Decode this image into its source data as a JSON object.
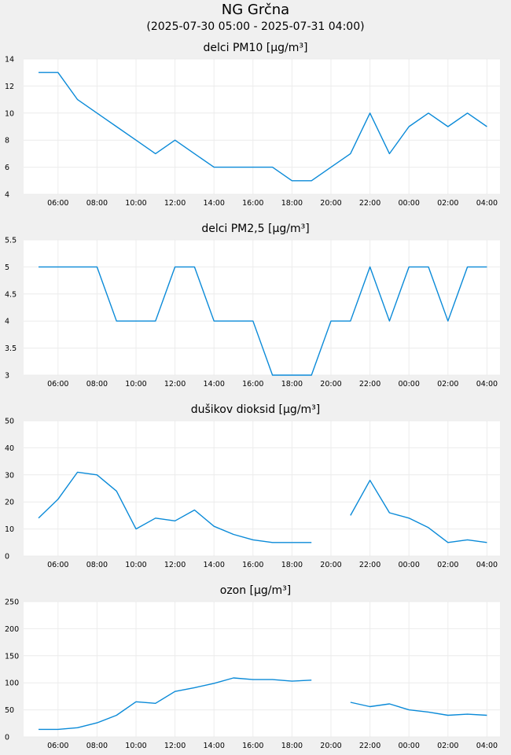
{
  "title": "NG Grčna",
  "subtitle": "(2025-07-30 05:00 - 2025-07-31 04:00)",
  "colors": {
    "line": "#0a8ad8",
    "plot_bg": "#ffffff",
    "grid": "#ececec",
    "page_bg": "#f0f0f0"
  },
  "chart_data": [
    {
      "type": "line",
      "title": "delci PM10 [µg/m³]",
      "x": [
        "05:00",
        "06:00",
        "07:00",
        "08:00",
        "09:00",
        "10:00",
        "11:00",
        "12:00",
        "13:00",
        "14:00",
        "15:00",
        "16:00",
        "17:00",
        "18:00",
        "19:00",
        "20:00",
        "21:00",
        "22:00",
        "23:00",
        "00:00",
        "01:00",
        "02:00",
        "03:00",
        "04:00"
      ],
      "values": [
        13,
        13,
        11,
        10,
        9,
        8,
        7,
        8,
        7,
        6,
        6,
        6,
        6,
        5,
        5,
        6,
        7,
        10,
        7,
        9,
        10,
        9,
        10,
        9
      ],
      "ylim": [
        4,
        14
      ],
      "yticks": [
        "4",
        "6",
        "8",
        "10",
        "12",
        "14"
      ],
      "xticks": [
        "06:00",
        "08:00",
        "10:00",
        "12:00",
        "14:00",
        "16:00",
        "18:00",
        "20:00",
        "22:00",
        "00:00",
        "02:00",
        "04:00"
      ]
    },
    {
      "type": "line",
      "title": "delci PM2,5 [µg/m³]",
      "x": [
        "05:00",
        "06:00",
        "07:00",
        "08:00",
        "09:00",
        "10:00",
        "11:00",
        "12:00",
        "13:00",
        "14:00",
        "15:00",
        "16:00",
        "17:00",
        "18:00",
        "19:00",
        "20:00",
        "21:00",
        "22:00",
        "23:00",
        "00:00",
        "01:00",
        "02:00",
        "03:00",
        "04:00"
      ],
      "values": [
        5,
        5,
        5,
        5,
        4,
        4,
        4,
        5,
        5,
        4,
        4,
        4,
        3,
        3,
        3,
        4,
        4,
        5,
        4,
        5,
        5,
        4,
        5,
        5
      ],
      "ylim": [
        3,
        5.5
      ],
      "yticks": [
        "3",
        "3.5",
        "4",
        "4.5",
        "5",
        "5.5"
      ],
      "xticks": [
        "06:00",
        "08:00",
        "10:00",
        "12:00",
        "14:00",
        "16:00",
        "18:00",
        "20:00",
        "22:00",
        "00:00",
        "02:00",
        "04:00"
      ]
    },
    {
      "type": "line",
      "title": "dušikov dioksid [µg/m³]",
      "x": [
        "05:00",
        "06:00",
        "07:00",
        "08:00",
        "09:00",
        "10:00",
        "11:00",
        "12:00",
        "13:00",
        "14:00",
        "15:00",
        "16:00",
        "17:00",
        "18:00",
        "19:00",
        "20:00",
        "21:00",
        "22:00",
        "23:00",
        "00:00",
        "01:00",
        "02:00",
        "03:00",
        "04:00"
      ],
      "values": [
        14,
        21,
        31,
        30,
        24,
        10,
        14,
        13,
        17,
        11,
        8,
        6,
        5,
        5,
        5,
        null,
        15,
        28,
        16,
        14,
        10.5,
        5,
        6,
        5
      ],
      "ylim": [
        0,
        50
      ],
      "yticks": [
        "0",
        "10",
        "20",
        "30",
        "40",
        "50"
      ],
      "xticks": [
        "06:00",
        "08:00",
        "10:00",
        "12:00",
        "14:00",
        "16:00",
        "18:00",
        "20:00",
        "22:00",
        "00:00",
        "02:00",
        "04:00"
      ]
    },
    {
      "type": "line",
      "title": "ozon [µg/m³]",
      "x": [
        "05:00",
        "06:00",
        "07:00",
        "08:00",
        "09:00",
        "10:00",
        "11:00",
        "12:00",
        "13:00",
        "14:00",
        "15:00",
        "16:00",
        "17:00",
        "18:00",
        "19:00",
        "20:00",
        "21:00",
        "22:00",
        "23:00",
        "00:00",
        "01:00",
        "02:00",
        "03:00",
        "04:00"
      ],
      "values": [
        14,
        14,
        17,
        26,
        40,
        65,
        62,
        84,
        91,
        99,
        109,
        106,
        106,
        103,
        105,
        null,
        64,
        56,
        61,
        50,
        46,
        40,
        42,
        40
      ],
      "ylim": [
        0,
        250
      ],
      "yticks": [
        "0",
        "50",
        "100",
        "150",
        "200",
        "250"
      ],
      "xticks": [
        "06:00",
        "08:00",
        "10:00",
        "12:00",
        "14:00",
        "16:00",
        "18:00",
        "20:00",
        "22:00",
        "00:00",
        "02:00",
        "04:00"
      ]
    }
  ]
}
